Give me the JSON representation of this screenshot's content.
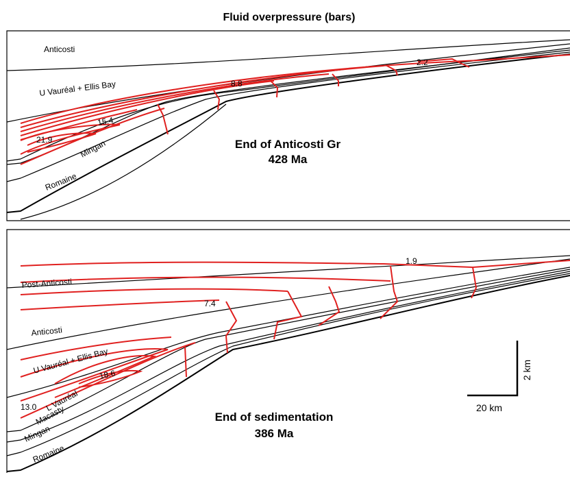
{
  "title": "Fluid overpressure (bars)",
  "panels": [
    {
      "layers": [
        "Anticosti",
        "U Vauréal + Ellis Bay",
        "Mingan",
        "Romaine"
      ],
      "contour_labels": [
        "2.2",
        "8.8",
        "15.4",
        "21.9"
      ],
      "caption": {
        "event": "End of Anticosti Gr",
        "age": "428 Ma"
      }
    },
    {
      "layers": [
        "Post-Anticosti",
        "Anticosti",
        "U Vauréal + Ellis Bay",
        "L Vauréal",
        "Macasty",
        "Mingan",
        "Romaine"
      ],
      "contour_labels": [
        "1.9",
        "7.4",
        "18.6",
        "13.0"
      ],
      "caption": {
        "event": "End of sedimentation",
        "age": "386 Ma"
      }
    }
  ],
  "scale_bar": {
    "vertical": "2 km",
    "horizontal": "20 km"
  }
}
